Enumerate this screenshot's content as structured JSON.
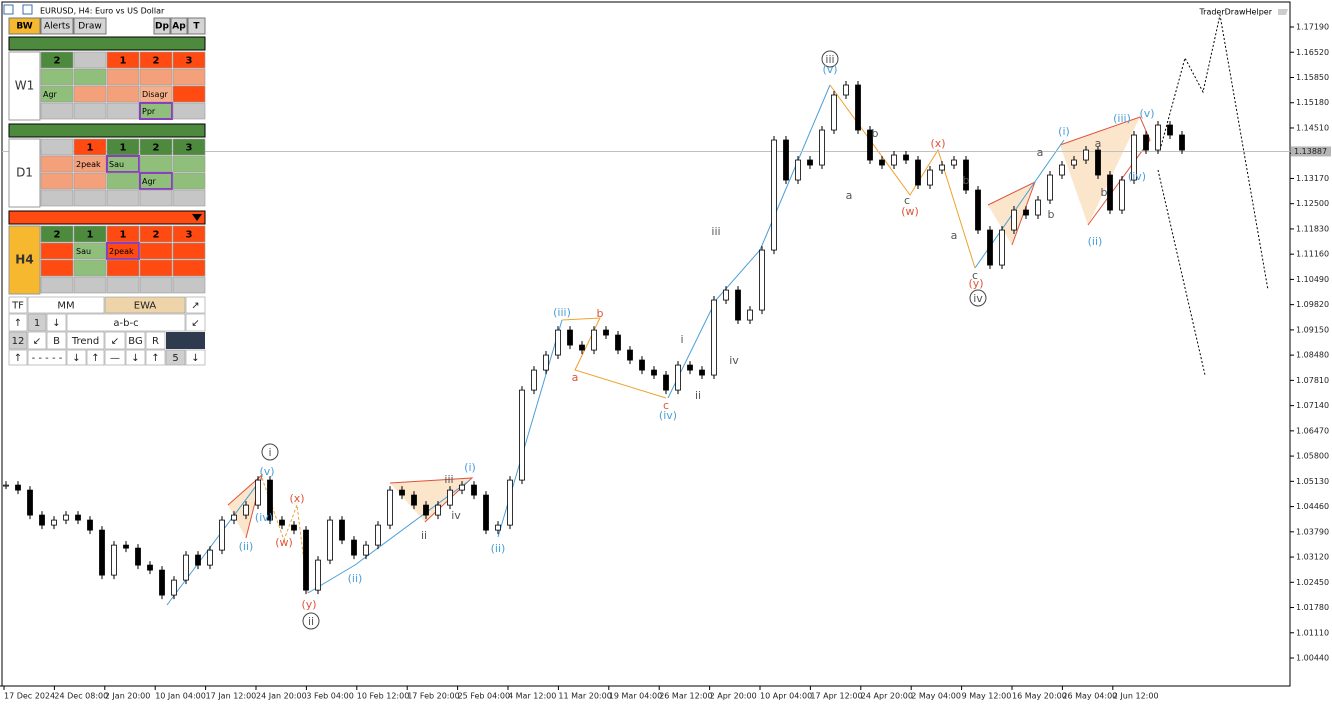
{
  "window": {
    "title": "EURUSD, H4:  Euro vs US Dollar",
    "indicator": "TraderDrawHelper"
  },
  "toolbar": [
    "BW",
    "Alerts",
    "Draw",
    "Dp",
    "Ap",
    "T"
  ],
  "panels": [
    {
      "label": "W1",
      "rows": [
        [
          "2",
          null,
          "1",
          "2",
          "3"
        ],
        [
          null,
          null,
          null,
          null,
          null
        ],
        [
          "Agr",
          null,
          null,
          "Disagr",
          null
        ],
        [
          null,
          null,
          null,
          "Ppr",
          null
        ]
      ]
    },
    {
      "label": "D1",
      "rows": [
        [
          null,
          "1",
          "1",
          "2",
          "3"
        ],
        [
          null,
          "2peak",
          "Sau",
          null,
          null
        ],
        [
          null,
          null,
          null,
          "Agr",
          null
        ],
        [
          null,
          null,
          null,
          null,
          null
        ]
      ]
    },
    {
      "label": "H4",
      "rows": [
        [
          "2",
          "1",
          "1",
          "2",
          "3"
        ],
        [
          null,
          "Sau",
          "2peak",
          null,
          null
        ],
        [
          null,
          null,
          null,
          null,
          null
        ],
        [
          null,
          null,
          null,
          null,
          null
        ]
      ]
    }
  ],
  "controls": [
    [
      "TF",
      "MM",
      "EWA",
      "↗"
    ],
    [
      "↑",
      "1",
      "↓",
      "a-b-c",
      "↙"
    ],
    [
      "12",
      "↙",
      "B",
      "Trend",
      "↙",
      "BG",
      "R"
    ],
    [
      "↑",
      "- - - - -",
      "↓",
      "↑",
      "—",
      "↓",
      "↑",
      "5",
      "↓"
    ]
  ],
  "chart_data": {
    "type": "candlestick",
    "closes": [
      1.0503,
      1.04897,
      1.04234,
      1.03968,
      1.04101,
      1.04234,
      1.04101,
      1.03835,
      1.02641,
      1.03437,
      1.03357,
      1.02906,
      1.02773,
      1.0211,
      1.02508,
      1.03172,
      1.02906,
      1.03304,
      1.04101,
      1.04234,
      1.04499,
      1.05163,
      1.04101,
      1.03968,
      1.03835,
      1.02242,
      1.03039,
      1.04101,
      1.0357,
      1.03172,
      1.03437,
      1.03968,
      1.04897,
      1.04765,
      1.04499,
      1.04234,
      1.04499,
      1.04897,
      1.0503,
      1.04765,
      1.03835,
      1.03968,
      1.05163,
      1.07552,
      1.08083,
      1.08482,
      1.09145,
      1.08747,
      1.08614,
      1.09145,
      1.09013,
      1.08614,
      1.08349,
      1.08083,
      1.07951,
      1.07552,
      1.08216,
      1.08083,
      1.07951,
      1.09942,
      1.10207,
      1.09411,
      1.09676,
      1.11269,
      1.1419,
      1.13128,
      1.13659,
      1.13526,
      1.14455,
      1.15385,
      1.1565,
      1.14455,
      1.13659,
      1.13526,
      1.13792,
      1.13659,
      1.12995,
      1.13393,
      1.13526,
      1.13659,
      1.12862,
      1.118,
      1.10871,
      1.118,
      1.12331,
      1.12199,
      1.12597,
      1.13261,
      1.13526,
      1.13659,
      1.13924,
      1.13261,
      1.12331,
      1.13128,
      1.14323,
      1.13924,
      1.14588,
      1.14323,
      1.13924
    ],
    "x_labels": [
      "17 Dec 2024",
      "24 Dec 08:00",
      "2 Jan 20:00",
      "10 Jan 04:00",
      "17 Jan 12:00",
      "24 Jan 20:00",
      "3 Feb 04:00",
      "10 Feb 12:00",
      "17 Feb 20:00",
      "25 Feb 04:00",
      "4 Mar 12:00",
      "11 Mar 20:00",
      "19 Mar 04:00",
      "26 Mar 12:00",
      "2 Apr 20:00",
      "10 Apr 04:00",
      "17 Apr 12:00",
      "24 Apr 20:00",
      "2 May 04:00",
      "9 May 12:00",
      "16 May 20:00",
      "26 May 04:00",
      "2 Jun 12:00"
    ],
    "ylim": [
      0.99697,
      1.17907
    ],
    "yticks": [
      {
        "value": 1.1719,
        "label": "1.17190"
      },
      {
        "value": 1.1652,
        "label": "1.16520"
      },
      {
        "value": 1.1585,
        "label": "1.15850"
      },
      {
        "value": 1.1518,
        "label": "1.15180"
      },
      {
        "value": 1.1451,
        "label": "1.14510"
      },
      {
        "value": 1.1384,
        "label": "1.13840"
      },
      {
        "value": 1.1317,
        "label": "1.13170"
      },
      {
        "value": 1.125,
        "label": "1.12500"
      },
      {
        "value": 1.1183,
        "label": "1.11830"
      },
      {
        "value": 1.1116,
        "label": "1.11160"
      },
      {
        "value": 1.1049,
        "label": "1.10490"
      },
      {
        "value": 1.0982,
        "label": "1.09820"
      },
      {
        "value": 1.0915,
        "label": "1.09150"
      },
      {
        "value": 1.0848,
        "label": "1.08480"
      },
      {
        "value": 1.0781,
        "label": "1.07810"
      },
      {
        "value": 1.0714,
        "label": "1.07140"
      },
      {
        "value": 1.0647,
        "label": "1.06470"
      },
      {
        "value": 1.058,
        "label": "1.05800"
      },
      {
        "value": 1.0513,
        "label": "1.05130"
      },
      {
        "value": 1.0446,
        "label": "1.04460"
      },
      {
        "value": 1.0379,
        "label": "1.03790"
      },
      {
        "value": 1.0312,
        "label": "1.03120"
      },
      {
        "value": 1.0245,
        "label": "1.02450"
      },
      {
        "value": 1.0178,
        "label": "1.01780"
      },
      {
        "value": 1.0111,
        "label": "1.01110"
      },
      {
        "value": 1.0044,
        "label": "1.00440"
      }
    ],
    "current_price": 1.13887,
    "annotations": [
      {
        "text": "i",
        "color": "#555555",
        "circled": true
      },
      {
        "text": "ii",
        "color": "#555555",
        "circled": true
      },
      {
        "text": "iii",
        "color": "#555555",
        "circled": true
      },
      {
        "text": "iv",
        "color": "#555555",
        "circled": true
      },
      {
        "text": "(v)",
        "color": "#4a9fd8"
      },
      {
        "text": "(iv)",
        "color": "#4a9fd8"
      },
      {
        "text": "(ii)",
        "color": "#4a9fd8"
      },
      {
        "text": "(x)",
        "color": "#e0533a"
      },
      {
        "text": "(w)",
        "color": "#e0533a"
      },
      {
        "text": "(y)",
        "color": "#e0533a"
      },
      {
        "text": "(ii)",
        "color": "#4a9fd8"
      },
      {
        "text": "iii",
        "color": "#555555"
      },
      {
        "text": "iv",
        "color": "#555555"
      },
      {
        "text": "ii",
        "color": "#555555"
      },
      {
        "text": "(i)",
        "color": "#4a9fd8"
      },
      {
        "text": "(ii)",
        "color": "#4a9fd8"
      },
      {
        "text": "(iii)",
        "color": "#4a9fd8"
      },
      {
        "text": "b",
        "color": "#e0533a"
      },
      {
        "text": "a",
        "color": "#e0533a"
      },
      {
        "text": "c",
        "color": "#e0533a"
      },
      {
        "text": "(iv)",
        "color": "#4a9fd8"
      },
      {
        "text": "i",
        "color": "#555555"
      },
      {
        "text": "ii",
        "color": "#555555"
      },
      {
        "text": "iii",
        "color": "#555555"
      },
      {
        "text": "iv",
        "color": "#555555"
      },
      {
        "text": "(v)",
        "color": "#4a9fd8"
      },
      {
        "text": "a",
        "color": "#555555"
      },
      {
        "text": "b",
        "color": "#555555"
      },
      {
        "text": "c",
        "color": "#555555"
      },
      {
        "text": "(w)",
        "color": "#e0533a"
      },
      {
        "text": "(x)",
        "color": "#e0533a"
      },
      {
        "text": "b",
        "color": "#555555"
      },
      {
        "text": "a",
        "color": "#555555"
      },
      {
        "text": "c",
        "color": "#555555"
      },
      {
        "text": "(y)",
        "color": "#e0533a"
      },
      {
        "text": "a",
        "color": "#555555"
      },
      {
        "text": "b",
        "color": "#555555"
      },
      {
        "text": "(i)",
        "color": "#4a9fd8"
      },
      {
        "text": "a",
        "color": "#555555"
      },
      {
        "text": "b",
        "color": "#555555"
      },
      {
        "text": "(ii)",
        "color": "#4a9fd8"
      },
      {
        "text": "(iii)",
        "color": "#4a9fd8"
      },
      {
        "text": "(v)",
        "color": "#4a9fd8"
      },
      {
        "text": "(iv)",
        "color": "#4a9fd8"
      }
    ]
  }
}
